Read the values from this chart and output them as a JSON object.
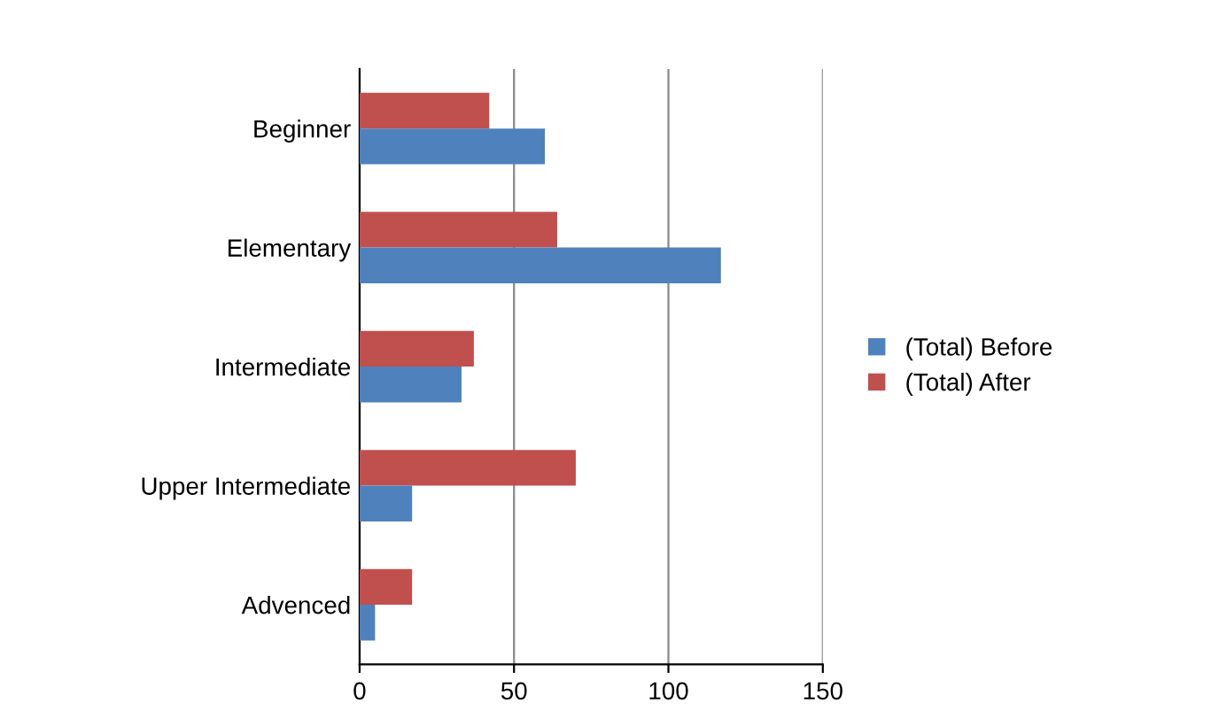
{
  "chart_data": {
    "type": "bar",
    "orientation": "horizontal",
    "categories": [
      "Beginner",
      "Elementary",
      "Intermediate",
      "Upper Intermediate",
      "Advenced"
    ],
    "series": [
      {
        "name": "(Total) After",
        "color": "#c0504d",
        "values": [
          42,
          64,
          37,
          70,
          17
        ]
      },
      {
        "name": "(Total) Before",
        "color": "#4f81bd",
        "values": [
          60,
          117,
          33,
          17,
          5
        ]
      }
    ],
    "xlim": [
      0,
      150
    ],
    "xticks": [
      0,
      50,
      100,
      150
    ],
    "grid": "x",
    "legend": "right"
  }
}
